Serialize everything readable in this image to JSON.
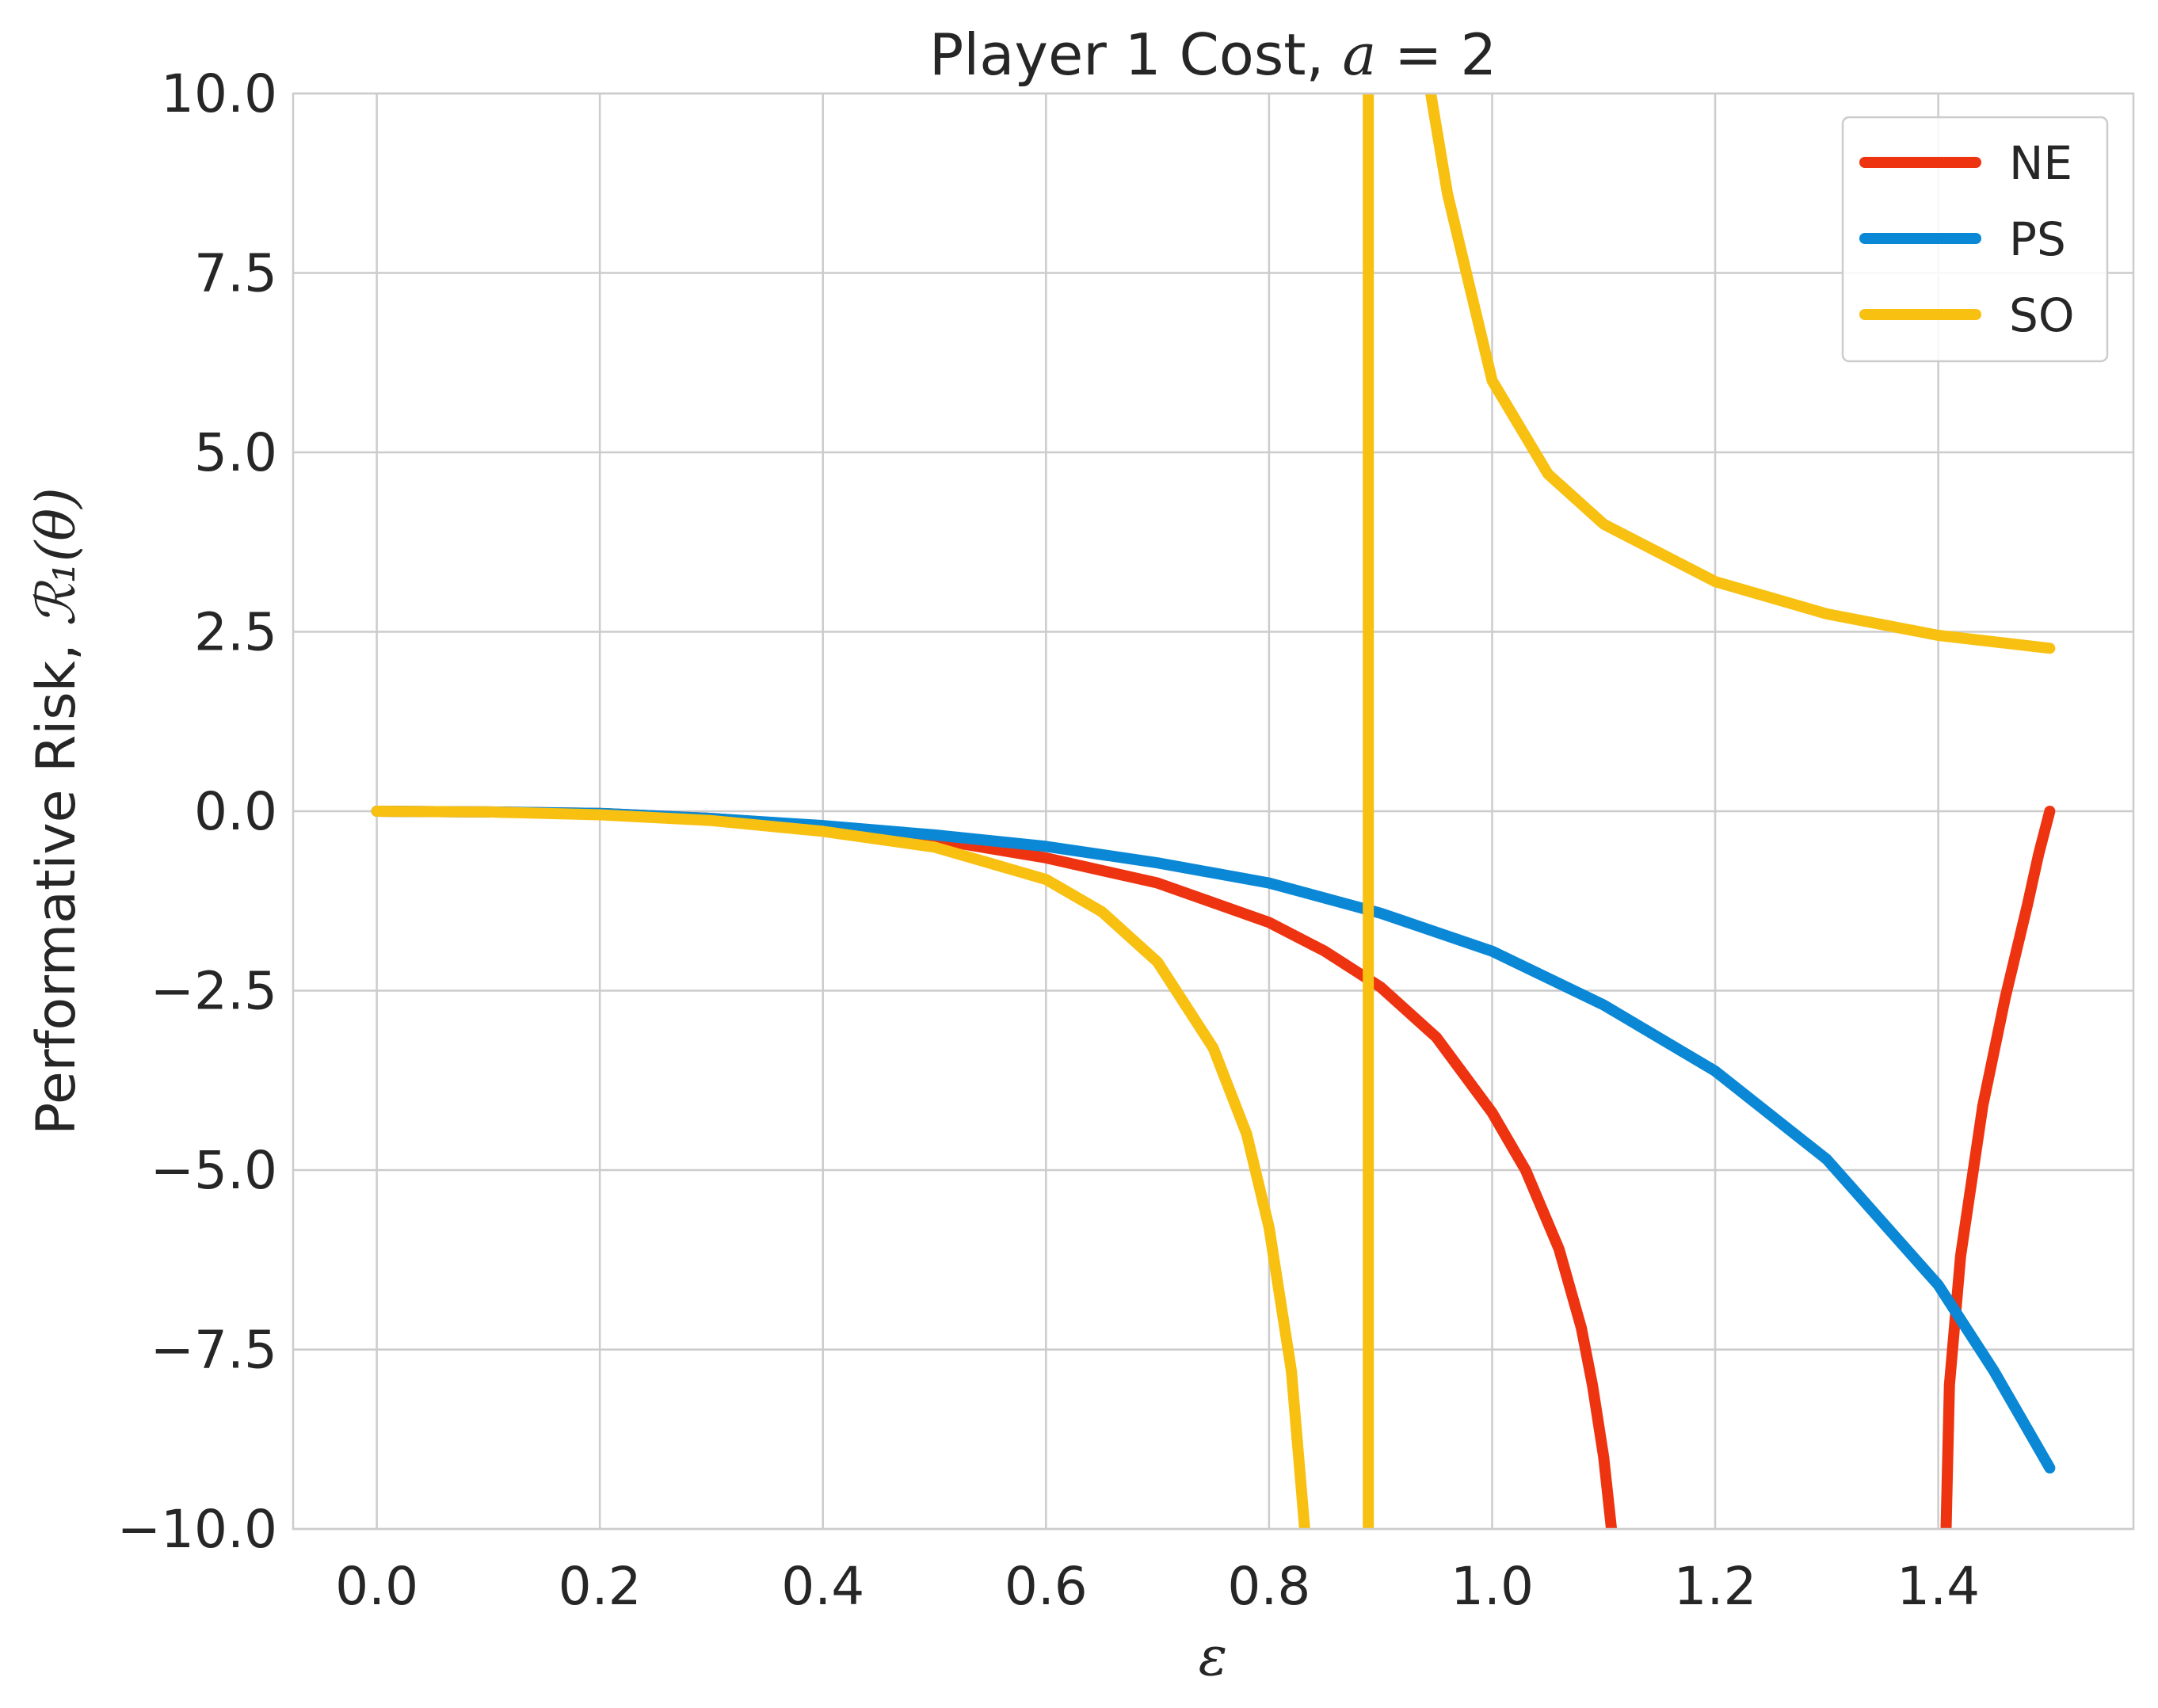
{
  "chart_data": {
    "type": "line",
    "title_prefix": "Player 1 Cost, ",
    "title_var": "a",
    "title_suffix": " = 2",
    "xlabel": "ε",
    "ylabel_prefix": "Performative Risk, ",
    "ylabel_math": "ℛ₁(θ)",
    "xlim": [
      -0.075,
      1.575
    ],
    "ylim": [
      -10.0,
      10.0
    ],
    "xticks": [
      0.0,
      0.2,
      0.4,
      0.6,
      0.8,
      1.0,
      1.2,
      1.4
    ],
    "xtick_labels": [
      "0.0",
      "0.2",
      "0.4",
      "0.6",
      "0.8",
      "1.0",
      "1.2",
      "1.4"
    ],
    "yticks": [
      -10.0,
      -7.5,
      -5.0,
      -2.5,
      0.0,
      2.5,
      5.0,
      7.5,
      10.0
    ],
    "ytick_labels": [
      "−10.0",
      "−7.5",
      "−5.0",
      "−2.5",
      "0.0",
      "2.5",
      "5.0",
      "7.5",
      "10.0"
    ],
    "grid": true,
    "legend_position": "top-right",
    "series": [
      {
        "name": "NE",
        "color": "#ee3311",
        "segments": [
          [
            [
              0.0,
              0.0
            ],
            [
              0.1,
              -0.01
            ],
            [
              0.2,
              -0.03
            ],
            [
              0.3,
              -0.1
            ],
            [
              0.4,
              -0.21
            ],
            [
              0.5,
              -0.39
            ],
            [
              0.6,
              -0.65
            ],
            [
              0.7,
              -1.0
            ],
            [
              0.8,
              -1.55
            ],
            [
              0.85,
              -1.95
            ],
            [
              0.9,
              -2.45
            ],
            [
              0.95,
              -3.15
            ],
            [
              1.0,
              -4.2
            ],
            [
              1.03,
              -5.0
            ],
            [
              1.06,
              -6.1
            ],
            [
              1.08,
              -7.2
            ],
            [
              1.09,
              -8.0
            ],
            [
              1.1,
              -9.0
            ],
            [
              1.107,
              -10.0
            ]
          ],
          [
            [
              1.407,
              -10.0
            ],
            [
              1.41,
              -8.0
            ],
            [
              1.42,
              -6.2
            ],
            [
              1.44,
              -4.1
            ],
            [
              1.46,
              -2.6
            ],
            [
              1.48,
              -1.3
            ],
            [
              1.49,
              -0.6
            ],
            [
              1.5,
              0.0
            ]
          ]
        ]
      },
      {
        "name": "PS",
        "color": "#0a88d6",
        "segments": [
          [
            [
              0.0,
              0.0
            ],
            [
              0.1,
              -0.01
            ],
            [
              0.2,
              -0.03
            ],
            [
              0.3,
              -0.1
            ],
            [
              0.4,
              -0.2
            ],
            [
              0.5,
              -0.33
            ],
            [
              0.6,
              -0.49
            ],
            [
              0.7,
              -0.72
            ],
            [
              0.8,
              -1.0
            ],
            [
              0.9,
              -1.42
            ],
            [
              1.0,
              -1.95
            ],
            [
              1.1,
              -2.7
            ],
            [
              1.2,
              -3.62
            ],
            [
              1.3,
              -4.85
            ],
            [
              1.4,
              -6.6
            ],
            [
              1.45,
              -7.8
            ],
            [
              1.5,
              -9.15
            ]
          ]
        ]
      },
      {
        "name": "SO",
        "color": "#f8c010",
        "segments": [
          [
            [
              0.0,
              0.0
            ],
            [
              0.1,
              -0.01
            ],
            [
              0.2,
              -0.05
            ],
            [
              0.3,
              -0.13
            ],
            [
              0.4,
              -0.28
            ],
            [
              0.5,
              -0.5
            ],
            [
              0.6,
              -0.95
            ],
            [
              0.65,
              -1.4
            ],
            [
              0.7,
              -2.1
            ],
            [
              0.75,
              -3.3
            ],
            [
              0.78,
              -4.5
            ],
            [
              0.8,
              -5.8
            ],
            [
              0.82,
              -7.8
            ],
            [
              0.832,
              -10.0
            ]
          ],
          [
            [
              0.889,
              -10.0
            ],
            [
              0.889,
              10.0
            ]
          ],
          [
            [
              0.945,
              10.0
            ],
            [
              0.96,
              8.6
            ],
            [
              0.98,
              7.3
            ],
            [
              1.0,
              6.0
            ],
            [
              1.05,
              4.7
            ],
            [
              1.1,
              4.0
            ],
            [
              1.2,
              3.2
            ],
            [
              1.3,
              2.75
            ],
            [
              1.4,
              2.45
            ],
            [
              1.5,
              2.27
            ]
          ]
        ]
      }
    ]
  }
}
